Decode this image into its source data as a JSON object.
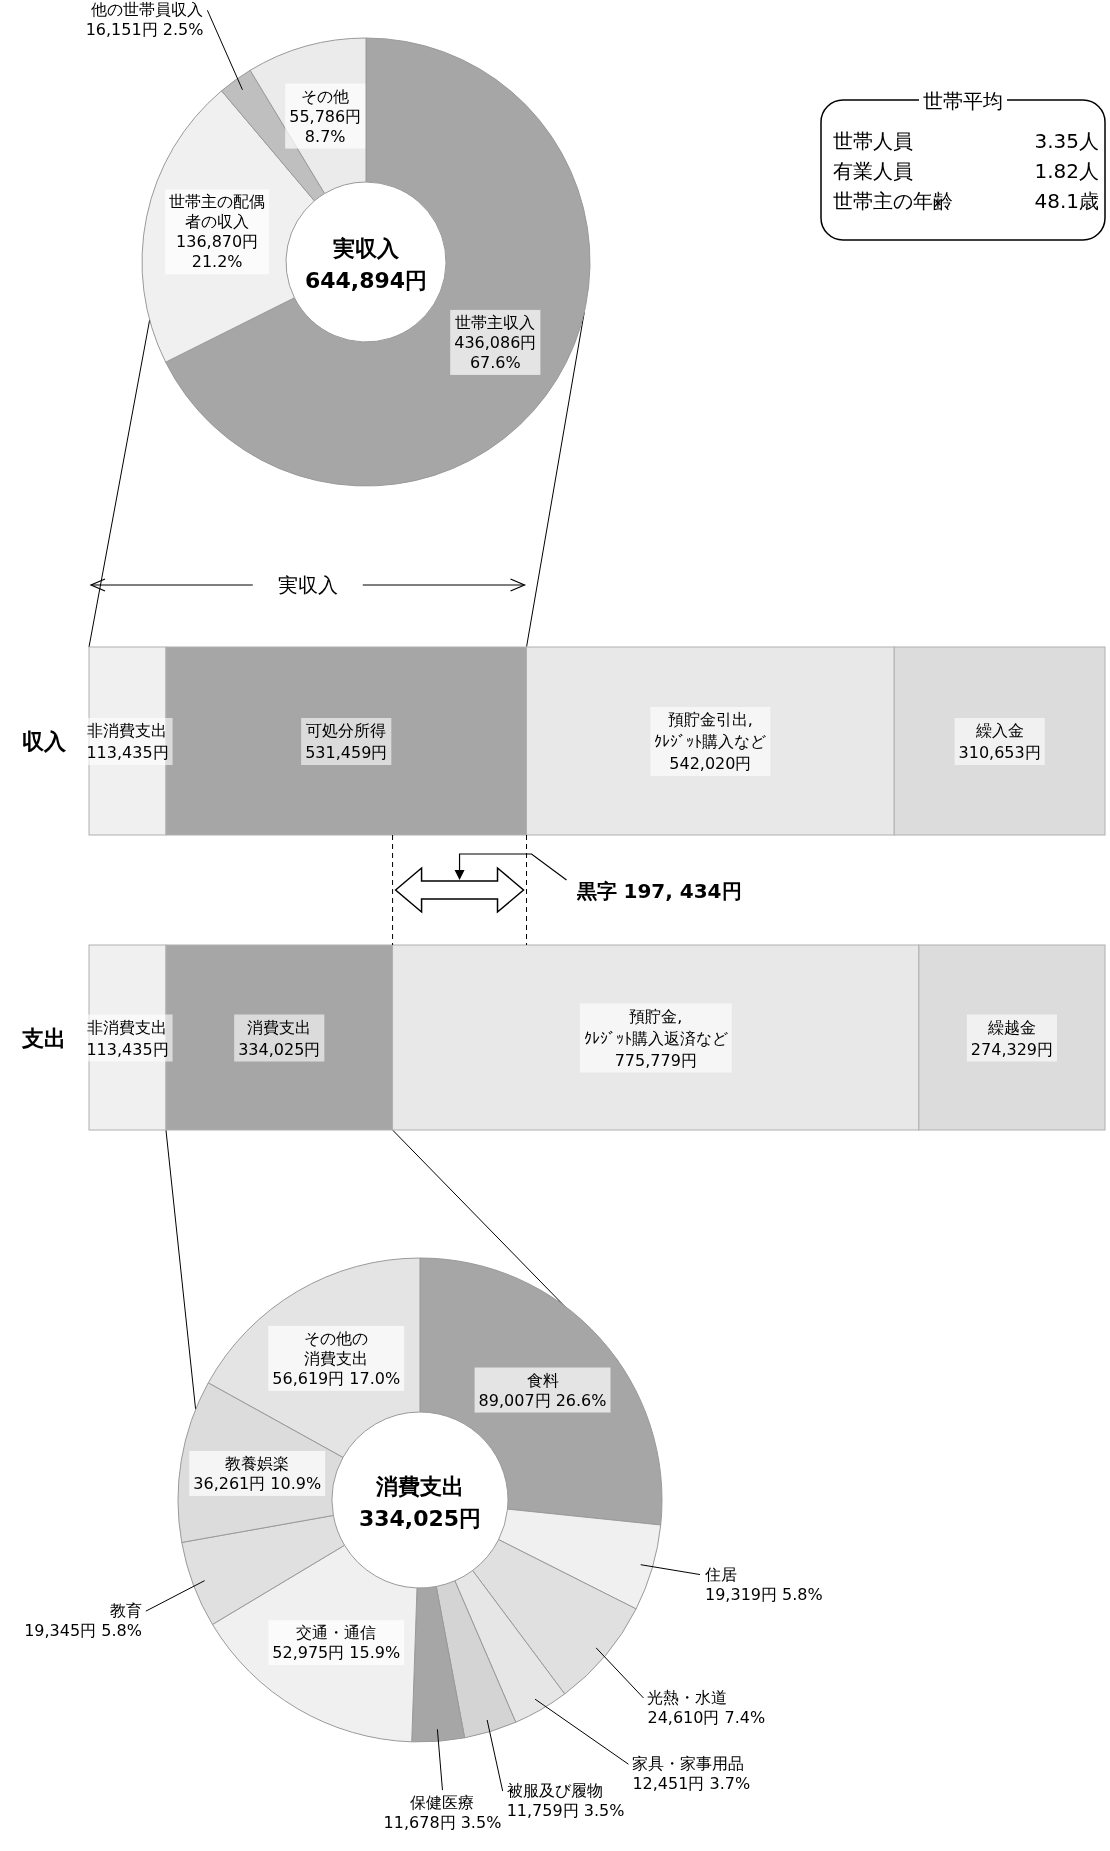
{
  "chart_data": [
    {
      "type": "donut",
      "title": "実収入",
      "subtitle": "644,894円",
      "categories": [
        "世帯主収入",
        "世帯主の配偶者の収入",
        "他の世帯員収入",
        "その他"
      ],
      "values": [
        436086,
        136870,
        16151,
        55786
      ],
      "value_labels": [
        "436,086円\n67.6%",
        "136,870円\n21.2%",
        "16,151円 2.5%",
        "55,786円\n8.7%"
      ],
      "colors": [
        "#a6a6a6",
        "#f0f0f0",
        "#bfbfbf",
        "#ebebeb"
      ]
    },
    {
      "type": "bar",
      "orientation": "horizontal",
      "stacked": true,
      "tick_labels": "y",
      "categories": [
        "収入",
        "支出"
      ],
      "series": [
        {
          "color": "#f0f0f0",
          "values": [
            113435,
            113435
          ],
          "value_labels": [
            "非消費支出\n113,435円",
            "非消費支出\n113,435円"
          ]
        },
        {
          "color": "#a6a6a6",
          "values": [
            531459,
            334025
          ],
          "value_labels": [
            "可処分所得\n531,459円",
            "消費支出\n334,025円"
          ]
        },
        {
          "color": "#e8e8e8",
          "values": [
            542020,
            775779
          ],
          "value_labels": [
            "預貯金引出,\nｸﾚｼﾞｯﾄ購入など\n542,020円",
            "預貯金,\nｸﾚｼﾞｯﾄ購入返済など\n775,779円"
          ]
        },
        {
          "color": "#dcdcdc",
          "values": [
            310653,
            274329
          ],
          "value_labels": [
            "繰入金\n310,653円",
            "繰越金\n274,329円"
          ]
        }
      ],
      "annotations": [
        "実収入",
        "黒字 197, 434円"
      ]
    },
    {
      "type": "donut",
      "title": "消費支出",
      "subtitle": "334,025円",
      "categories": [
        "食料",
        "住居",
        "光熱・水道",
        "家具・家事用品",
        "被服及び履物",
        "保健医療",
        "交通・通信",
        "教育",
        "教養娯楽",
        "その他の消費支出"
      ],
      "values": [
        89007,
        19319,
        24610,
        12451,
        11759,
        11678,
        52975,
        19345,
        36261,
        56619
      ],
      "value_labels": [
        "89,007円 26.6%",
        "19,319円 5.8%",
        "24,610円 7.4%",
        "12,451円 3.7%",
        "11,759円 3.5%",
        "11,678円 3.5%",
        "52,975円 15.9%",
        "19,345円 5.8%",
        "36,261円 10.9%",
        "56,619円 17.0%"
      ],
      "colors": [
        "#a6a6a6",
        "#f0f0f0",
        "#e0e0e0",
        "#e6e6e6",
        "#d4d4d4",
        "#a6a6a6",
        "#f0f0f0",
        "#e0e0e0",
        "#dcdcdc",
        "#e4e4e4"
      ]
    },
    {
      "type": "other",
      "title": "世帯平均",
      "categories": [
        "世帯人員",
        "有業人員",
        "世帯主の年齢"
      ],
      "value_labels": [
        "3.35人",
        "1.82人",
        "48.1歳"
      ]
    }
  ]
}
